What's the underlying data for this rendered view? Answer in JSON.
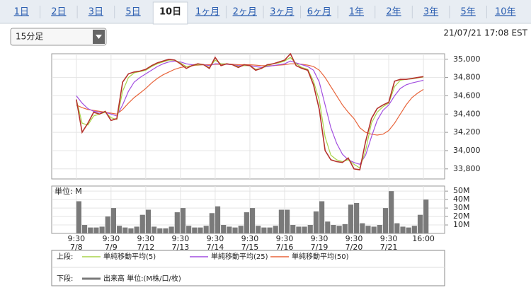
{
  "tabs": [
    {
      "label": "1日"
    },
    {
      "label": "2日"
    },
    {
      "label": "3日"
    },
    {
      "label": "5日"
    },
    {
      "label": "10日",
      "active": true
    },
    {
      "label": "1ヶ月"
    },
    {
      "label": "2ヶ月"
    },
    {
      "label": "3ヶ月"
    },
    {
      "label": "6ヶ月"
    },
    {
      "label": "1年"
    },
    {
      "label": "2年"
    },
    {
      "label": "3年"
    },
    {
      "label": "5年"
    },
    {
      "label": "10年"
    }
  ],
  "dropdown": "15分足",
  "timestamp": "21/07/21 17:08 EST",
  "chart_data": [
    {
      "type": "line",
      "legend_title": "上段:",
      "x": [
        0,
        0.167,
        0.333,
        0.5,
        0.667,
        0.833,
        1,
        1.167,
        1.333,
        1.5,
        1.667,
        1.833,
        2,
        2.167,
        2.333,
        2.5,
        2.667,
        2.833,
        3,
        3.167,
        3.333,
        3.5,
        3.667,
        3.833,
        4,
        4.167,
        4.333,
        4.5,
        4.667,
        4.833,
        5,
        5.167,
        5.333,
        5.5,
        5.667,
        5.833,
        6,
        6.167,
        6.333,
        6.5,
        6.667,
        6.833,
        7,
        7.167,
        7.333,
        7.5,
        7.667,
        7.833,
        8,
        8.167,
        8.333,
        8.5,
        8.667,
        8.833,
        9,
        9.167,
        9.333,
        9.5,
        9.667,
        9.833,
        10
      ],
      "values": [
        34560,
        34200,
        34300,
        34420,
        34400,
        34430,
        34330,
        34350,
        34750,
        34840,
        34860,
        34870,
        34890,
        34930,
        34960,
        34980,
        35000,
        34990,
        34950,
        34900,
        34930,
        34950,
        34940,
        34900,
        35020,
        34930,
        34950,
        34940,
        34910,
        34940,
        34930,
        34880,
        34900,
        34940,
        34950,
        34970,
        34990,
        35060,
        34930,
        34900,
        34880,
        34720,
        34450,
        34000,
        33900,
        33880,
        33870,
        33920,
        33800,
        33790,
        34100,
        34350,
        34460,
        34500,
        34530,
        34760,
        34780,
        34780,
        34790,
        34800,
        34810
      ],
      "color": "#b5322c",
      "series": [
        {
          "name": "単純移動平均(5)",
          "color": "#a9d44a",
          "values": [
            34560,
            34300,
            34280,
            34380,
            34400,
            34420,
            34360,
            34340,
            34650,
            34800,
            34850,
            34865,
            34880,
            34920,
            34950,
            34970,
            34990,
            34990,
            34960,
            34920,
            34930,
            34940,
            34940,
            34910,
            34990,
            34950,
            34950,
            34940,
            34920,
            34930,
            34930,
            34890,
            34900,
            34930,
            34950,
            34960,
            34980,
            35020,
            34950,
            34910,
            34890,
            34760,
            34550,
            34150,
            33950,
            33900,
            33880,
            33900,
            33850,
            33810,
            34000,
            34300,
            34420,
            34480,
            34520,
            34700,
            34770,
            34780,
            34785,
            34795,
            34805
          ]
        },
        {
          "name": "単純移動平均(25)",
          "color": "#a24fe0",
          "values": [
            34600,
            34520,
            34460,
            34430,
            34420,
            34420,
            34400,
            34380,
            34500,
            34650,
            34750,
            34800,
            34840,
            34880,
            34920,
            34950,
            34970,
            34980,
            34970,
            34950,
            34940,
            34940,
            34940,
            34930,
            34950,
            34950,
            34945,
            34940,
            34930,
            34930,
            34930,
            34920,
            34910,
            34920,
            34930,
            34940,
            34950,
            34980,
            34960,
            34940,
            34920,
            34880,
            34750,
            34500,
            34250,
            34080,
            33960,
            33900,
            33870,
            33850,
            33950,
            34150,
            34330,
            34440,
            34500,
            34600,
            34680,
            34720,
            34740,
            34755,
            34770
          ]
        },
        {
          "name": "単純移動平均(50)",
          "color": "#e8653c",
          "values": [
            34500,
            34470,
            34450,
            34440,
            34430,
            34420,
            34410,
            34400,
            34450,
            34520,
            34580,
            34630,
            34680,
            34740,
            34790,
            34830,
            34860,
            34890,
            34910,
            34920,
            34930,
            34935,
            34940,
            34940,
            34945,
            34945,
            34945,
            34945,
            34940,
            34940,
            34940,
            34935,
            34930,
            34930,
            34930,
            34935,
            34940,
            34950,
            34950,
            34945,
            34935,
            34920,
            34880,
            34800,
            34700,
            34600,
            34500,
            34420,
            34350,
            34250,
            34200,
            34180,
            34170,
            34180,
            34220,
            34300,
            34400,
            34500,
            34580,
            34630,
            34670
          ]
        }
      ],
      "xlim": [
        -0.71,
        10.61
      ],
      "ylim": [
        33690,
        35060
      ],
      "yticks": [
        {
          "value": 33800,
          "label": "33,800"
        },
        {
          "value": 34000,
          "label": "34,000"
        },
        {
          "value": 34200,
          "label": "34,200"
        },
        {
          "value": 34400,
          "label": "34,400"
        },
        {
          "value": 34600,
          "label": "34,600"
        },
        {
          "value": 34800,
          "label": "34,800"
        },
        {
          "value": 35000,
          "label": "35,000"
        }
      ],
      "grid": true
    },
    {
      "type": "bar",
      "legend_title": "下段:",
      "unit_label": "単位: M",
      "x": [
        0,
        0.167,
        0.333,
        0.5,
        0.667,
        0.833,
        1,
        1.167,
        1.333,
        1.5,
        1.667,
        1.833,
        2,
        2.167,
        2.333,
        2.5,
        2.667,
        2.833,
        3,
        3.167,
        3.333,
        3.5,
        3.667,
        3.833,
        4,
        4.167,
        4.333,
        4.5,
        4.667,
        4.833,
        5,
        5.167,
        5.333,
        5.5,
        5.667,
        5.833,
        6,
        6.167,
        6.333,
        6.5,
        6.667,
        6.833,
        7,
        7.167,
        7.333,
        7.5,
        7.667,
        7.833,
        8,
        8.167,
        8.333,
        8.5,
        8.667,
        8.833,
        9,
        9.167,
        9.333,
        9.5,
        9.667,
        9.833,
        10
      ],
      "series": [
        {
          "name": "出来高 単位:(M株/口/枚)",
          "color": "#7a7a7a",
          "values": [
            38,
            10,
            7,
            7,
            8,
            20,
            30,
            9,
            7,
            6,
            8,
            22,
            28,
            8,
            6,
            6,
            8,
            25,
            30,
            9,
            7,
            7,
            9,
            24,
            32,
            10,
            8,
            7,
            9,
            25,
            30,
            9,
            7,
            7,
            9,
            28,
            28,
            10,
            8,
            8,
            10,
            26,
            38,
            14,
            10,
            9,
            11,
            34,
            36,
            12,
            9,
            8,
            10,
            30,
            50,
            12,
            8,
            7,
            9,
            22,
            40
          ]
        }
      ],
      "xlim": [
        -0.71,
        10.61
      ],
      "ylim": [
        0,
        56
      ],
      "yticks": [
        {
          "value": 10,
          "label": "10M"
        },
        {
          "value": 20,
          "label": "20M"
        },
        {
          "value": 30,
          "label": "30M"
        },
        {
          "value": 40,
          "label": "40M"
        },
        {
          "value": 50,
          "label": "50M"
        }
      ],
      "xticks": [
        {
          "value": 0,
          "label": "9:30"
        },
        {
          "value": 1,
          "label": "9:30"
        },
        {
          "value": 2,
          "label": "9:30"
        },
        {
          "value": 3,
          "label": "9:30"
        },
        {
          "value": 4,
          "label": "9:30"
        },
        {
          "value": 5,
          "label": "9:30"
        },
        {
          "value": 6,
          "label": "9:30"
        },
        {
          "value": 7,
          "label": "9:30"
        },
        {
          "value": 8,
          "label": "9:30"
        },
        {
          "value": 9,
          "label": "9:30"
        },
        {
          "value": 10,
          "label": "16:00"
        }
      ],
      "xtick_dates": [
        "7/8",
        "7/9",
        "7/12",
        "7/13",
        "7/14",
        "7/15",
        "7/16",
        "7/19",
        "7/20",
        "7/21"
      ],
      "grid": true
    }
  ]
}
